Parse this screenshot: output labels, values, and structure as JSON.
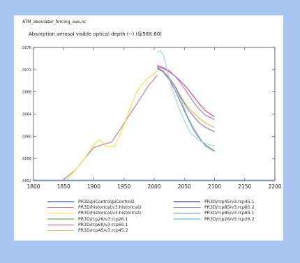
{
  "file_label": "ATM_aboviaser_forcing_ave.nc",
  "chart_data": {
    "type": "line",
    "title": "Absorption aerosol visible optical depth (--) (@58X:60)",
    "xlabel": "",
    "ylabel": "",
    "xlim": [
      1800,
      2200
    ],
    "ylim": [
      0.0052,
      0.0076
    ],
    "x_ticks": [
      "1800",
      "1850",
      "1900",
      "1950",
      "2000",
      "2050",
      "2100",
      "2150",
      "2200"
    ],
    "y_ticks": [
      ".0052",
      ".0056",
      ".0060",
      ".0064",
      ".0068",
      ".0072",
      ".0076"
    ],
    "legend_position": "bottom",
    "series": [
      {
        "name": "PR3D/piControl/piControl2",
        "color": "#7f97d8",
        "x": [
          1800,
          1850,
          1900,
          1950,
          2000,
          2050,
          2100,
          2150,
          2200
        ],
        "y": [
          0.00521,
          0.00521,
          0.00521,
          0.00521,
          0.00521,
          0.00521,
          0.00521,
          0.00521,
          0.00521
        ]
      },
      {
        "name": "PR3D/historical/v3.historical2",
        "color": "#c57ea0",
        "x": [
          1850,
          1870,
          1900,
          1930,
          1960,
          1990,
          2005
        ],
        "y": [
          0.00522,
          0.0054,
          0.0058,
          0.0059,
          0.0064,
          0.0069,
          0.0071
        ]
      },
      {
        "name": "PR3D/historical/v3.historical1",
        "color": "#f2e04a",
        "x": [
          1855,
          1870,
          1885,
          1900,
          1910,
          1920,
          1935,
          1950,
          1960,
          1970,
          1980,
          1990,
          2000,
          2005
        ],
        "y": [
          0.00522,
          0.0054,
          0.0056,
          0.00585,
          0.00594,
          0.00582,
          0.00582,
          0.0062,
          0.0065,
          0.00678,
          0.00694,
          0.00705,
          0.00712,
          0.00718
        ]
      },
      {
        "name": "PR3D/rcp26/v3.rcp26.1",
        "color": "#9fc89a",
        "x": [
          2005,
          2015,
          2025,
          2035,
          2045,
          2055,
          2065,
          2075,
          2085,
          2100
        ],
        "y": [
          0.00722,
          0.00718,
          0.00706,
          0.00688,
          0.00664,
          0.00636,
          0.00616,
          0.00598,
          0.00582,
          0.00572
        ]
      },
      {
        "name": "PR3D/rcp60/v3.rcp60.1",
        "color": "#d64d8e",
        "x": [
          2005,
          2015,
          2025,
          2035,
          2045,
          2055,
          2065,
          2075,
          2085,
          2100
        ],
        "y": [
          0.00726,
          0.00722,
          0.00716,
          0.00708,
          0.00698,
          0.00686,
          0.00672,
          0.00658,
          0.00646,
          0.00635
        ]
      },
      {
        "name": "PR3D/rcp45/v3.rcp45.2",
        "color": "#f3b45f",
        "x": [
          2005,
          2015,
          2025,
          2035,
          2045,
          2055,
          2065,
          2075,
          2085,
          2100
        ],
        "y": [
          0.00724,
          0.00718,
          0.00706,
          0.0069,
          0.0067,
          0.00654,
          0.00642,
          0.00632,
          0.00624,
          0.00615
        ]
      },
      {
        "name": "PR3D/rcp45/v3.rcp45.1",
        "color": "#8b7dc4",
        "x": [
          2005,
          2015,
          2025,
          2035,
          2045,
          2055,
          2065,
          2075,
          2085,
          2100
        ],
        "y": [
          0.00722,
          0.00716,
          0.00704,
          0.00688,
          0.00668,
          0.0065,
          0.00636,
          0.00624,
          0.00616,
          0.00608
        ]
      },
      {
        "name": "PR3D/rcp85/v3.rcp85.2",
        "color": "#b07ccf",
        "x": [
          2005,
          2015,
          2025,
          2035,
          2045,
          2055,
          2065,
          2075,
          2085,
          2100
        ],
        "y": [
          0.00728,
          0.00724,
          0.00718,
          0.00708,
          0.00694,
          0.00678,
          0.00662,
          0.00648,
          0.00638,
          0.0063
        ]
      },
      {
        "name": "PR3D/rcp85/v3.rcp85.1",
        "color": "#6f88c9",
        "x": [
          2005,
          2015,
          2025,
          2035,
          2045,
          2055,
          2065,
          2075,
          2085,
          2100
        ],
        "y": [
          0.00724,
          0.00716,
          0.00702,
          0.00682,
          0.00658,
          0.00634,
          0.00612,
          0.00596,
          0.00584,
          0.00574
        ]
      },
      {
        "name": "PR3D/rcp26/v3.rcp26.2",
        "color": "#9ed8e2",
        "x": [
          2005,
          2010,
          2015,
          2020,
          2025,
          2030,
          2040,
          2050,
          2060,
          2075,
          2090,
          2100
        ],
        "y": [
          0.00752,
          0.00754,
          0.00746,
          0.00726,
          0.00704,
          0.00684,
          0.00654,
          0.00628,
          0.00606,
          0.00592,
          0.00585,
          0.00583
        ]
      }
    ]
  },
  "legend": {
    "left": [
      {
        "label": "PR3D/piControl/piControl2",
        "color": "#7f97d8"
      },
      {
        "label": "PR3D/historical/v3.historical2",
        "color": "#c57ea0"
      },
      {
        "label": "PR3D/historical/v3.historical1",
        "color": "#f2e04a"
      },
      {
        "label": "PR3D/rcp26/v3.rcp26.1",
        "color": "#9fc89a"
      },
      {
        "label": "PR3D/rcp60/v3.rcp60.1",
        "color": "#d64d8e"
      },
      {
        "label": "PR3D/rcp45/v3.rcp45.2",
        "color": "#f3b45f"
      }
    ],
    "right": [
      {
        "label": "PR3D/rcp45/v3.rcp45.1",
        "color": "#8b7dc4"
      },
      {
        "label": "PR3D/rcp85/v3.rcp85.2",
        "color": "#b07ccf"
      },
      {
        "label": "PR3D/rcp85/v3.rcp85.1",
        "color": "#6f88c9"
      },
      {
        "label": "PR3D/rcp26/v3.rcp26.2",
        "color": "#9ed8e2"
      }
    ]
  }
}
